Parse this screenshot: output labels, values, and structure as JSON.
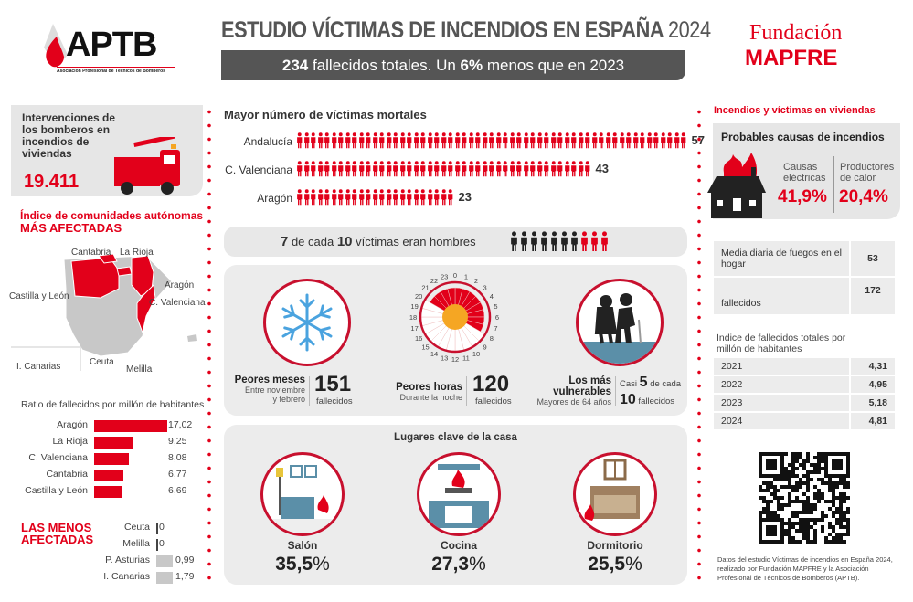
{
  "header": {
    "logo_left": "APTB",
    "logo_left_sub": "Asociación Profesional de Técnicos de Bomberos",
    "title": "ESTUDIO VÍCTIMAS DE INCENDIOS EN ESPAÑA",
    "title_year": "2024",
    "banner_total": "234",
    "banner_mid": " fallecidos totales. Un ",
    "banner_pct": "6%",
    "banner_end": " menos que en 2023",
    "logo_right_line1": "Fundación",
    "logo_right_line2": "MAPFRE"
  },
  "colors": {
    "accent": "#e2001a",
    "dark": "#555555",
    "panel": "#ececec",
    "orange": "#f5a623",
    "blue": "#4aa3df"
  },
  "left": {
    "interventions_title": "Intervenciones de los bomberos en incendios de viviendas",
    "interventions_value": "19.411",
    "index_title": "Índice de comunidades autónomas",
    "index_title_strong": "MÁS AFECTADAS",
    "map_labels": {
      "cantabria": "Cantabria",
      "rioja": "La Rioja",
      "aragon": "Aragón",
      "castilla": "Castilla y León",
      "valenciana": "C. Valenciana",
      "canarias": "I. Canarias",
      "ceuta": "Ceuta",
      "melilla": "Melilla"
    },
    "ratio_title": "Ratio de fallecidos por millón de habitantes",
    "ratio": [
      {
        "name": "Aragón",
        "value": 17.02,
        "label": "17,02"
      },
      {
        "name": "La Rioja",
        "value": 9.25,
        "label": "9,25"
      },
      {
        "name": "C. Valenciana",
        "value": 8.08,
        "label": "8,08"
      },
      {
        "name": "Cantabria",
        "value": 6.77,
        "label": "6,77"
      },
      {
        "name": "Castilla y León",
        "value": 6.69,
        "label": "6,69"
      }
    ],
    "less_title": "LAS MENOS AFECTADAS",
    "less": [
      {
        "name": "Ceuta",
        "value": 0,
        "label": "0"
      },
      {
        "name": "Melilla",
        "value": 0,
        "label": "0"
      },
      {
        "name": "P. Asturias",
        "value": 0.99,
        "label": "0,99"
      },
      {
        "name": "I. Canarias",
        "value": 1.79,
        "label": "1,79"
      }
    ]
  },
  "center": {
    "victims_title": "Mayor número de víctimas mortales",
    "victims": [
      {
        "name": "Andalucía",
        "value": 57,
        "label": "57"
      },
      {
        "name": "C. Valenciana",
        "value": 43,
        "label": "43"
      },
      {
        "name": "Aragón",
        "value": 23,
        "label": "23"
      }
    ],
    "men": {
      "num": "7",
      "mid": " de cada ",
      "den": "10",
      "end": " víctimas eran hombres",
      "men_count": 7,
      "total": 10
    },
    "months": {
      "title": "Peores meses",
      "sub1": "Entre noviembre",
      "sub2": "y febrero",
      "value": "151",
      "unit": "fallecidos"
    },
    "hours": {
      "title": "Peores horas",
      "sub": "Durante la noche",
      "value": "120",
      "unit": "fallecidos",
      "labels": [
        "0",
        "1",
        "2",
        "3",
        "4",
        "5",
        "6",
        "7",
        "8",
        "9",
        "10",
        "11",
        "12",
        "13",
        "14",
        "15",
        "16",
        "17",
        "18",
        "19",
        "20",
        "21",
        "22",
        "23"
      ],
      "highlight_from": 20,
      "highlight_to": 7
    },
    "vulnerable": {
      "title1": "Los más",
      "title2": "vulnerables",
      "sub": "Mayores de 64 años",
      "pre": "Casi ",
      "num": "5",
      "mid": " de cada",
      "den": "10",
      "unit": " fallecidos"
    },
    "places_title": "Lugares clave de la casa",
    "places": [
      {
        "name": "Salón",
        "pct": "35,5",
        "sign": "%"
      },
      {
        "name": "Cocina",
        "pct": "27,3",
        "sign": "%"
      },
      {
        "name": "Dormitorio",
        "pct": "25,5",
        "sign": "%"
      }
    ]
  },
  "right": {
    "section_title": "Incendios y víctimas en viviendas",
    "causes_title": "Probables causas de incendios",
    "cause1_l1": "Causas",
    "cause1_l2": "eléctricas",
    "cause1_pct": "41,9%",
    "cause2_l1": "Productores",
    "cause2_l2": "de calor",
    "cause2_pct": "20,4%",
    "stats": [
      {
        "label": "Media diaria de fuegos en el hogar",
        "value": "53"
      },
      {
        "label": "fallecidos",
        "value": "172"
      }
    ],
    "index_title": "Índice de fallecidos totales por millón de habitantes",
    "index": [
      {
        "year": "2021",
        "value": "4,31"
      },
      {
        "year": "2022",
        "value": "4,95"
      },
      {
        "year": "2023",
        "value": "5,18"
      },
      {
        "year": "2024",
        "value": "4,81"
      }
    ],
    "footnote": "Datos del estudio Víctimas de incendios en España 2024, realizado por Fundación MAPFRE y la Asociación Profesional de Técnicos de Bomberos (APTB)."
  }
}
